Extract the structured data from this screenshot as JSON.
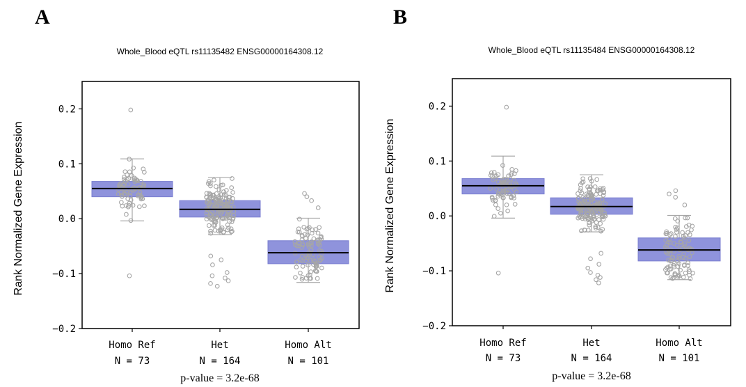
{
  "chart_data": [
    {
      "panel_label": "A",
      "type": "box",
      "title": "Whole_Blood eQTL rs11135482 ENSG00000164308.12",
      "ylabel": "Rank Normalized Gene Expression",
      "ylim": [
        -0.2,
        0.25
      ],
      "yticks": [
        {
          "value": 0.2,
          "label": "0.2"
        },
        {
          "value": 0.1,
          "label": "0.1"
        },
        {
          "value": 0.0,
          "label": "0.0"
        },
        {
          "value": -0.1,
          "label": "−0.1"
        },
        {
          "value": -0.2,
          "label": "−0.2"
        }
      ],
      "categories": [
        {
          "name": "Homo Ref",
          "n_label": "N = 73",
          "n": 73,
          "q1": 0.04,
          "median": 0.055,
          "q3": 0.068,
          "whisker_low": -0.004,
          "whisker_high": 0.109,
          "outliers": [
            0.198,
            -0.104
          ]
        },
        {
          "name": "Het",
          "n_label": "N = 164",
          "n": 164,
          "q1": 0.003,
          "median": 0.017,
          "q3": 0.033,
          "whisker_low": -0.029,
          "whisker_high": 0.075,
          "outliers": [
            -0.068,
            -0.075,
            -0.084,
            -0.098,
            -0.104,
            -0.108,
            -0.113,
            -0.118,
            -0.123
          ]
        },
        {
          "name": "Homo Alt",
          "n_label": "N = 101",
          "n": 101,
          "q1": -0.082,
          "median": -0.062,
          "q3": -0.04,
          "whisker_low": -0.116,
          "whisker_high": 0.001,
          "outliers": [
            0.046,
            0.04,
            0.033,
            0.02
          ]
        }
      ],
      "p_value_label": "p-value = 3.2e-68",
      "colors": {
        "box": "#8f93dc",
        "median": "#000000",
        "points": "#a6a6a6",
        "whisker": "#a6a6a6"
      }
    },
    {
      "panel_label": "B",
      "type": "box",
      "title": "Whole_Blood eQTL rs11135484 ENSG00000164308.12",
      "ylabel": "Rank Normalized Gene Expression",
      "ylim": [
        -0.2,
        0.25
      ],
      "yticks": [
        {
          "value": 0.2,
          "label": "0.2"
        },
        {
          "value": 0.1,
          "label": "0.1"
        },
        {
          "value": 0.0,
          "label": "0.0"
        },
        {
          "value": -0.1,
          "label": "−0.1"
        },
        {
          "value": -0.2,
          "label": "−0.2"
        }
      ],
      "categories": [
        {
          "name": "Homo Ref",
          "n_label": "N = 73",
          "n": 73,
          "q1": 0.04,
          "median": 0.055,
          "q3": 0.068,
          "whisker_low": -0.004,
          "whisker_high": 0.109,
          "outliers": [
            0.198,
            -0.104
          ]
        },
        {
          "name": "Het",
          "n_label": "N = 164",
          "n": 164,
          "q1": 0.003,
          "median": 0.017,
          "q3": 0.033,
          "whisker_low": -0.029,
          "whisker_high": 0.075,
          "outliers": [
            -0.068,
            -0.078,
            -0.088,
            -0.095,
            -0.103,
            -0.108,
            -0.112,
            -0.116,
            -0.122
          ]
        },
        {
          "name": "Homo Alt",
          "n_label": "N = 101",
          "n": 101,
          "q1": -0.082,
          "median": -0.062,
          "q3": -0.04,
          "whisker_low": -0.116,
          "whisker_high": 0.001,
          "outliers": [
            0.046,
            0.04,
            0.034,
            0.02
          ]
        }
      ],
      "p_value_label": "p-value = 3.2e-68",
      "colors": {
        "box": "#8f93dc",
        "median": "#000000",
        "points": "#a6a6a6",
        "whisker": "#a6a6a6"
      }
    }
  ]
}
